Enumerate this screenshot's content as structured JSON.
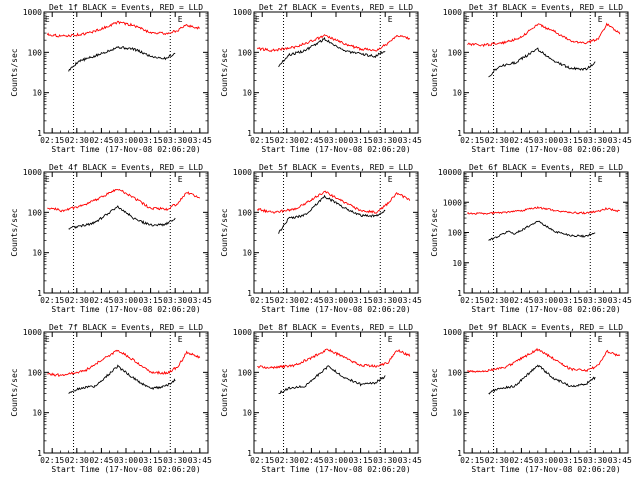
{
  "chart_data": [
    {
      "type": "line",
      "title": "Det 1f BLACK = Events, RED = LLD",
      "xlabel": "Start Time (17-Nov-08 02:06:20)",
      "ylabel": "Counts/sec",
      "x_ticks": [
        "02:15",
        "02:30",
        "02:45",
        "03:00",
        "03:15",
        "03:30",
        "03:45"
      ],
      "y_ticks": [
        "1",
        "10",
        "100",
        "1000"
      ],
      "ylim": [
        1,
        1000
      ],
      "y_scale": "log",
      "markers": [
        {
          "label": "E",
          "time": "02:12"
        },
        {
          "label": "E",
          "time": "03:33"
        }
      ],
      "vlines": [
        "02:28",
        "03:27"
      ],
      "series": [
        {
          "color": "#000000",
          "times": [
            "02:25",
            "02:31",
            "02:41",
            "02:55",
            "03:05",
            "03:15",
            "03:24",
            "03:30"
          ],
          "values": [
            35,
            60,
            80,
            135,
            120,
            80,
            70,
            95
          ]
        },
        {
          "color": "#ff0000",
          "times": [
            "02:12",
            "02:21",
            "02:35",
            "02:45",
            "02:55",
            "03:05",
            "03:15",
            "03:25",
            "03:32",
            "03:37",
            "03:45"
          ],
          "values": [
            280,
            250,
            285,
            380,
            560,
            460,
            310,
            290,
            360,
            470,
            390
          ]
        }
      ]
    },
    {
      "type": "line",
      "title": "Det 2f BLACK = Events, RED = LLD",
      "xlabel": "Start Time (17-Nov-08 02:06:20)",
      "ylabel": "Counts/sec",
      "x_ticks": [
        "02:15",
        "02:30",
        "02:45",
        "03:00",
        "03:15",
        "03:30",
        "03:45"
      ],
      "y_ticks": [
        "1",
        "10",
        "100",
        "1000"
      ],
      "ylim": [
        1,
        1000
      ],
      "y_scale": "log",
      "markers": [
        {
          "label": "E",
          "time": "02:12"
        },
        {
          "label": "E",
          "time": "03:33"
        }
      ],
      "vlines": [
        "02:28",
        "03:27"
      ],
      "series": [
        {
          "color": "#000000",
          "times": [
            "02:25",
            "02:31",
            "02:41",
            "02:53",
            "03:05",
            "03:15",
            "03:24",
            "03:30"
          ],
          "values": [
            45,
            85,
            110,
            215,
            110,
            90,
            80,
            110
          ]
        },
        {
          "color": "#ff0000",
          "times": [
            "02:12",
            "02:21",
            "02:35",
            "02:45",
            "02:53",
            "03:05",
            "03:15",
            "03:25",
            "03:32",
            "03:37",
            "03:45"
          ],
          "values": [
            125,
            110,
            135,
            190,
            260,
            165,
            120,
            115,
            170,
            270,
            215
          ]
        }
      ]
    },
    {
      "type": "line",
      "title": "Det 3f BLACK = Events, RED = LLD",
      "xlabel": "Start Time (17-Nov-08 02:06:20)",
      "ylabel": "Counts/sec",
      "x_ticks": [
        "02:15",
        "02:30",
        "02:45",
        "03:00",
        "03:15",
        "03:30",
        "03:45"
      ],
      "y_ticks": [
        "1",
        "10",
        "100",
        "1000"
      ],
      "ylim": [
        1,
        1000
      ],
      "y_scale": "log",
      "markers": [
        {
          "label": "E",
          "time": "02:12"
        },
        {
          "label": "E",
          "time": "03:33"
        }
      ],
      "vlines": [
        "02:28",
        "03:27"
      ],
      "series": [
        {
          "color": "#000000",
          "times": [
            "02:25",
            "02:31",
            "02:41",
            "02:55",
            "03:05",
            "03:15",
            "03:24",
            "03:30"
          ],
          "values": [
            25,
            45,
            55,
            120,
            60,
            40,
            38,
            55
          ]
        },
        {
          "color": "#ff0000",
          "times": [
            "02:12",
            "02:21",
            "02:35",
            "02:45",
            "02:55",
            "03:05",
            "03:15",
            "03:25",
            "03:32",
            "03:37",
            "03:45"
          ],
          "values": [
            160,
            150,
            175,
            240,
            500,
            330,
            190,
            170,
            220,
            500,
            300
          ]
        }
      ]
    },
    {
      "type": "line",
      "title": "Det 4f BLACK = Events, RED = LLD",
      "xlabel": "Start Time (17-Nov-08 02:06:20)",
      "ylabel": "Counts/sec",
      "x_ticks": [
        "02:15",
        "02:30",
        "02:45",
        "03:00",
        "03:15",
        "03:30",
        "03:45"
      ],
      "y_ticks": [
        "1",
        "10",
        "100",
        "1000"
      ],
      "ylim": [
        1,
        1000
      ],
      "y_scale": "log",
      "markers": [
        {
          "label": "E",
          "time": "02:12"
        },
        {
          "label": "E",
          "time": "03:33"
        }
      ],
      "vlines": [
        "02:28",
        "03:27"
      ],
      "series": [
        {
          "color": "#000000",
          "times": [
            "02:25",
            "02:31",
            "02:41",
            "02:55",
            "03:05",
            "03:15",
            "03:24",
            "03:30"
          ],
          "values": [
            40,
            45,
            55,
            140,
            70,
            48,
            50,
            70
          ]
        },
        {
          "color": "#ff0000",
          "times": [
            "02:12",
            "02:21",
            "02:35",
            "02:45",
            "02:55",
            "03:05",
            "03:15",
            "03:25",
            "03:32",
            "03:37",
            "03:45"
          ],
          "values": [
            130,
            110,
            150,
            240,
            380,
            230,
            125,
            120,
            170,
            320,
            220
          ]
        }
      ]
    },
    {
      "type": "line",
      "title": "Det 5f BLACK = Events, RED = LLD",
      "xlabel": "Start Time (17-Nov-08 02:06:20)",
      "ylabel": "Counts/sec",
      "x_ticks": [
        "02:15",
        "02:30",
        "02:45",
        "03:00",
        "03:15",
        "03:30",
        "03:45"
      ],
      "y_ticks": [
        "1",
        "10",
        "100",
        "1000"
      ],
      "ylim": [
        1,
        1000
      ],
      "y_scale": "log",
      "markers": [
        {
          "label": "E",
          "time": "02:12"
        },
        {
          "label": "E",
          "time": "03:33"
        }
      ],
      "vlines": [
        "02:28",
        "03:27"
      ],
      "series": [
        {
          "color": "#000000",
          "times": [
            "02:25",
            "02:31",
            "02:41",
            "02:53",
            "03:05",
            "03:15",
            "03:24",
            "03:30"
          ],
          "values": [
            30,
            70,
            85,
            250,
            130,
            85,
            80,
            110
          ]
        },
        {
          "color": "#ff0000",
          "times": [
            "02:12",
            "02:21",
            "02:35",
            "02:45",
            "02:53",
            "03:05",
            "03:15",
            "03:25",
            "03:32",
            "03:37",
            "03:45"
          ],
          "values": [
            120,
            100,
            120,
            200,
            330,
            180,
            110,
            100,
            170,
            300,
            200
          ]
        }
      ]
    },
    {
      "type": "line",
      "title": "Det 6f BLACK = Events, RED = LLD",
      "xlabel": "Start Time (17-Nov-08 02:06:20)",
      "ylabel": "Counts/sec",
      "x_ticks": [
        "02:15",
        "02:30",
        "02:45",
        "03:00",
        "03:15",
        "03:30",
        "03:45"
      ],
      "y_ticks": [
        "1",
        "10",
        "100",
        "1000",
        "10000"
      ],
      "ylim": [
        1,
        10000
      ],
      "y_scale": "log",
      "markers": [
        {
          "label": "E",
          "time": "02:12"
        },
        {
          "label": "E",
          "time": "03:33"
        }
      ],
      "vlines": [
        "02:28",
        "03:27"
      ],
      "series": [
        {
          "color": "#000000",
          "times": [
            "02:25",
            "02:31",
            "02:37",
            "02:41",
            "02:55",
            "03:05",
            "03:15",
            "03:24",
            "03:30"
          ],
          "values": [
            55,
            75,
            110,
            90,
            240,
            110,
            80,
            75,
            100
          ]
        },
        {
          "color": "#ff0000",
          "times": [
            "02:12",
            "02:21",
            "02:35",
            "02:45",
            "02:55",
            "03:05",
            "03:15",
            "03:25",
            "03:32",
            "03:37",
            "03:45"
          ],
          "values": [
            430,
            420,
            460,
            520,
            680,
            540,
            450,
            440,
            500,
            620,
            500
          ]
        }
      ]
    },
    {
      "type": "line",
      "title": "Det 7f BLACK = Events, RED = LLD",
      "xlabel": "Start Time (17-Nov-08 02:06:20)",
      "ylabel": "Counts/sec",
      "x_ticks": [
        "02:15",
        "02:30",
        "02:45",
        "03:00",
        "03:15",
        "03:30",
        "03:45"
      ],
      "y_ticks": [
        "1",
        "10",
        "100",
        "1000"
      ],
      "ylim": [
        1,
        1000
      ],
      "y_scale": "log",
      "markers": [
        {
          "label": "E",
          "time": "02:12"
        },
        {
          "label": "E",
          "time": "03:33"
        }
      ],
      "vlines": [
        "02:28",
        "03:27"
      ],
      "series": [
        {
          "color": "#000000",
          "times": [
            "02:25",
            "02:31",
            "02:41",
            "02:55",
            "03:05",
            "03:15",
            "03:24",
            "03:30"
          ],
          "values": [
            30,
            40,
            45,
            140,
            70,
            40,
            45,
            65
          ]
        },
        {
          "color": "#ff0000",
          "times": [
            "02:12",
            "02:21",
            "02:35",
            "02:45",
            "02:55",
            "03:05",
            "03:15",
            "03:25",
            "03:32",
            "03:37",
            "03:45"
          ],
          "values": [
            90,
            85,
            110,
            200,
            350,
            200,
            100,
            95,
            140,
            320,
            230
          ]
        }
      ]
    },
    {
      "type": "line",
      "title": "Det 8f BLACK = Events, RED = LLD",
      "xlabel": "Start Time (17-Nov-08 02:06:20)",
      "ylabel": "Counts/sec",
      "x_ticks": [
        "02:15",
        "02:30",
        "02:45",
        "03:00",
        "03:15",
        "03:30",
        "03:45"
      ],
      "y_ticks": [
        "1",
        "10",
        "100",
        "1000"
      ],
      "ylim": [
        1,
        1000
      ],
      "y_scale": "log",
      "markers": [
        {
          "label": "E",
          "time": "02:12"
        },
        {
          "label": "E",
          "time": "03:33"
        }
      ],
      "vlines": [
        "02:28",
        "03:27"
      ],
      "series": [
        {
          "color": "#000000",
          "times": [
            "02:25",
            "02:31",
            "02:41",
            "02:55",
            "03:05",
            "03:15",
            "03:24",
            "03:30"
          ],
          "values": [
            30,
            40,
            45,
            140,
            75,
            50,
            55,
            80
          ]
        },
        {
          "color": "#ff0000",
          "times": [
            "02:12",
            "02:21",
            "02:35",
            "02:45",
            "02:55",
            "03:05",
            "03:15",
            "03:25",
            "03:32",
            "03:37",
            "03:45"
          ],
          "values": [
            140,
            130,
            150,
            230,
            380,
            230,
            150,
            140,
            180,
            360,
            260
          ]
        }
      ]
    },
    {
      "type": "line",
      "title": "Det 9f BLACK = Events, RED = LLD",
      "xlabel": "Start Time (17-Nov-08 02:06:20)",
      "ylabel": "Counts/sec",
      "x_ticks": [
        "02:15",
        "02:30",
        "02:45",
        "03:00",
        "03:15",
        "03:30",
        "03:45"
      ],
      "y_ticks": [
        "1",
        "10",
        "100",
        "1000"
      ],
      "ylim": [
        1,
        1000
      ],
      "y_scale": "log",
      "markers": [
        {
          "label": "E",
          "time": "02:12"
        },
        {
          "label": "E",
          "time": "03:33"
        }
      ],
      "vlines": [
        "02:28",
        "03:27"
      ],
      "series": [
        {
          "color": "#000000",
          "times": [
            "02:25",
            "02:31",
            "02:41",
            "02:55",
            "03:05",
            "03:15",
            "03:24",
            "03:30"
          ],
          "values": [
            30,
            40,
            45,
            150,
            70,
            45,
            50,
            75
          ]
        },
        {
          "color": "#ff0000",
          "times": [
            "02:12",
            "02:21",
            "02:35",
            "02:45",
            "02:55",
            "03:05",
            "03:15",
            "03:25",
            "03:32",
            "03:37",
            "03:45"
          ],
          "values": [
            110,
            105,
            130,
            220,
            370,
            210,
            120,
            110,
            150,
            330,
            250
          ]
        }
      ]
    }
  ]
}
